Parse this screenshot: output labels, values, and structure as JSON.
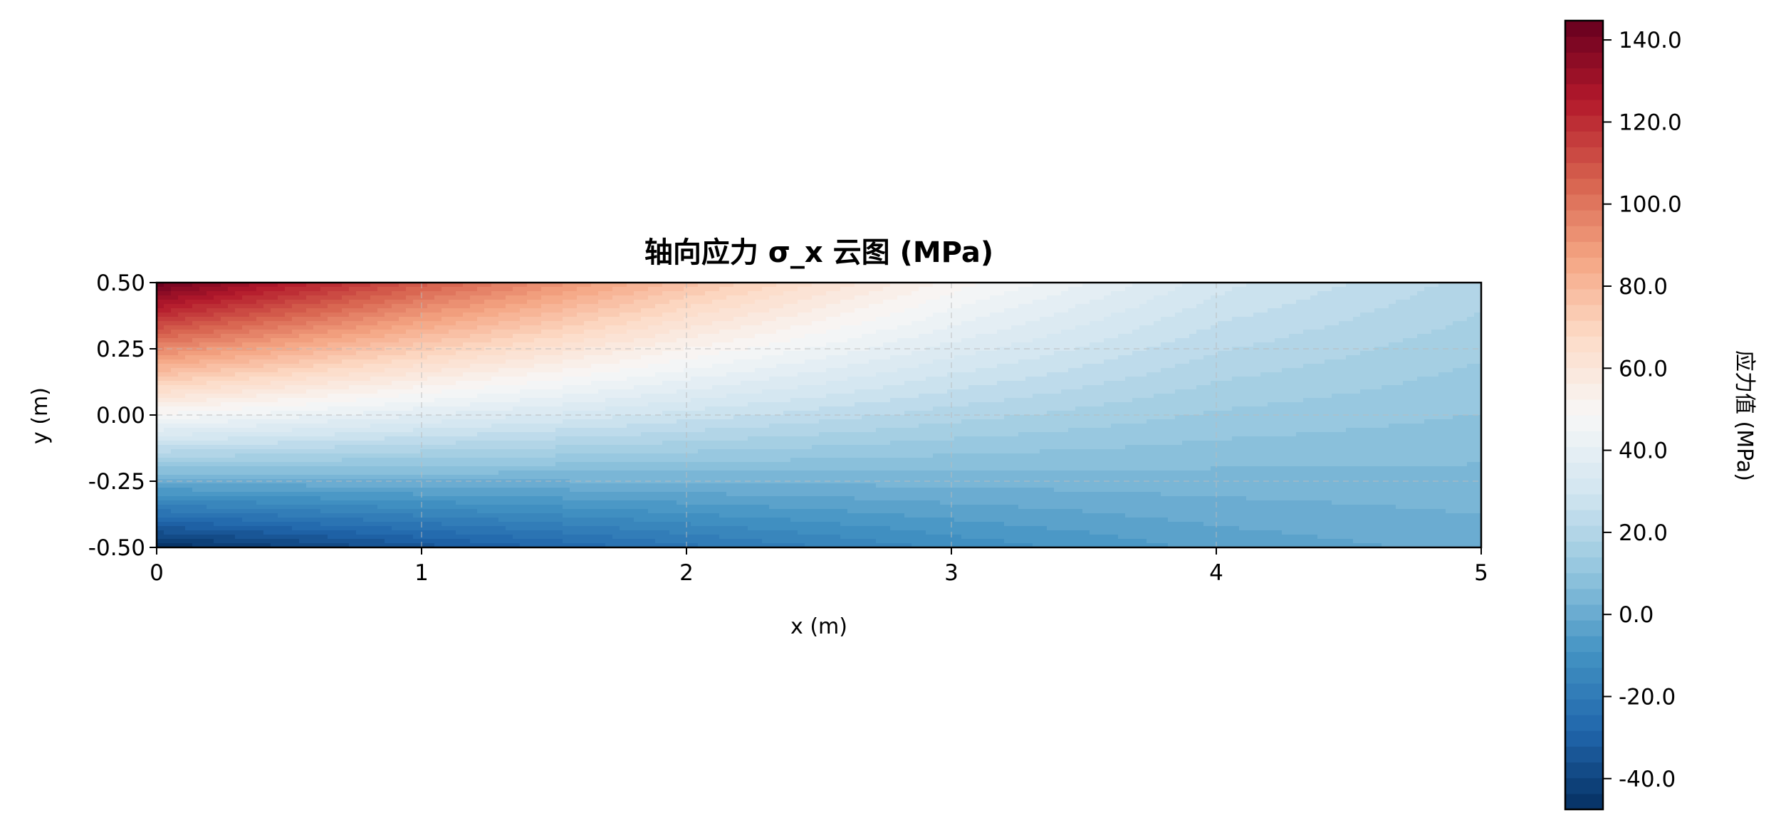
{
  "chart_data": {
    "type": "heatmap",
    "subtype": "filled-contour",
    "title": "轴向应力 σ_x 云图 (MPa)",
    "xlabel": "x (m)",
    "ylabel": "y (m)",
    "xlim": [
      0,
      5
    ],
    "ylim": [
      -0.5,
      0.5
    ],
    "xticks": [
      "0",
      "1",
      "2",
      "3",
      "4",
      "5"
    ],
    "yticks": [
      "0.50",
      "0.25",
      "0.00",
      "-0.25",
      "-0.50"
    ],
    "grid": true,
    "colormap": "RdBu_r",
    "colormap_stops": [
      "#053061",
      "#2166ac",
      "#4393c3",
      "#92c5de",
      "#d1e5f0",
      "#f7f7f7",
      "#fddbc7",
      "#f4a582",
      "#d6604d",
      "#b2182b",
      "#67001f"
    ],
    "colorbar": {
      "label": "应力值 (MPa)",
      "range": [
        -47.5,
        144.7
      ],
      "ticks": [
        "140.0",
        "120.0",
        "100.0",
        "80.0",
        "60.0",
        "40.0",
        "20.0",
        "0.0",
        "-20.0",
        "-40.0"
      ],
      "tick_values": [
        140,
        120,
        100,
        80,
        60,
        40,
        20,
        0,
        -20,
        -40
      ],
      "levels": 50,
      "placement": "right"
    },
    "x": [
      0,
      1,
      2,
      3,
      4,
      5
    ],
    "y": [
      0.5,
      0.25,
      0,
      -0.25,
      -0.5
    ],
    "z": [
      [
        143.0,
        108.1,
        77.2,
        51.1,
        31.0,
        20.0
      ],
      [
        95.5,
        72.6,
        52.4,
        35.4,
        22.2,
        15.0
      ],
      [
        48.0,
        37.2,
        27.7,
        19.6,
        13.4,
        10.0
      ],
      [
        0.5,
        1.8,
        3.0,
        3.9,
        4.6,
        5.0
      ],
      [
        -47.0,
        -33.7,
        -21.8,
        -11.9,
        -4.2,
        0.0
      ]
    ]
  }
}
